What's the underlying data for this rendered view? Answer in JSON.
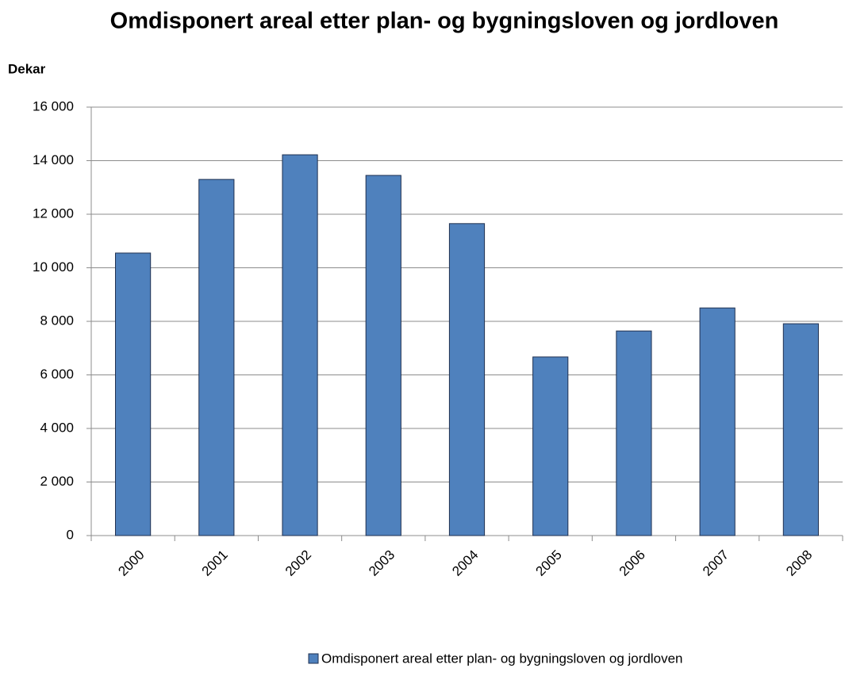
{
  "chart_data": {
    "type": "bar",
    "title": "Omdisponert areal etter plan- og bygningsloven og jordloven",
    "y_axis_label": "Dekar",
    "categories": [
      "2000",
      "2001",
      "2002",
      "2003",
      "2004",
      "2005",
      "2006",
      "2007",
      "2008"
    ],
    "series": [
      {
        "name": "Omdisponert areal etter plan- og bygningsloven og jordloven",
        "color": "#4f81bd",
        "values": [
          10550,
          13300,
          14220,
          13450,
          11650,
          6670,
          7640,
          8500,
          7910
        ]
      }
    ],
    "ylim": [
      0,
      16000
    ],
    "yticks": [
      0,
      {
        "value": 2000,
        "label": "2 000"
      },
      {
        "value": 4000,
        "label": "4 000"
      },
      {
        "value": 6000,
        "label": "6 000"
      },
      {
        "value": 8000,
        "label": "8 000"
      },
      {
        "value": 10000,
        "label": "10 000"
      },
      {
        "value": 12000,
        "label": "12 000"
      },
      {
        "value": 14000,
        "label": "14 000"
      },
      {
        "value": 16000,
        "label": "16 000"
      }
    ],
    "grid": true,
    "legend": "bottom"
  }
}
